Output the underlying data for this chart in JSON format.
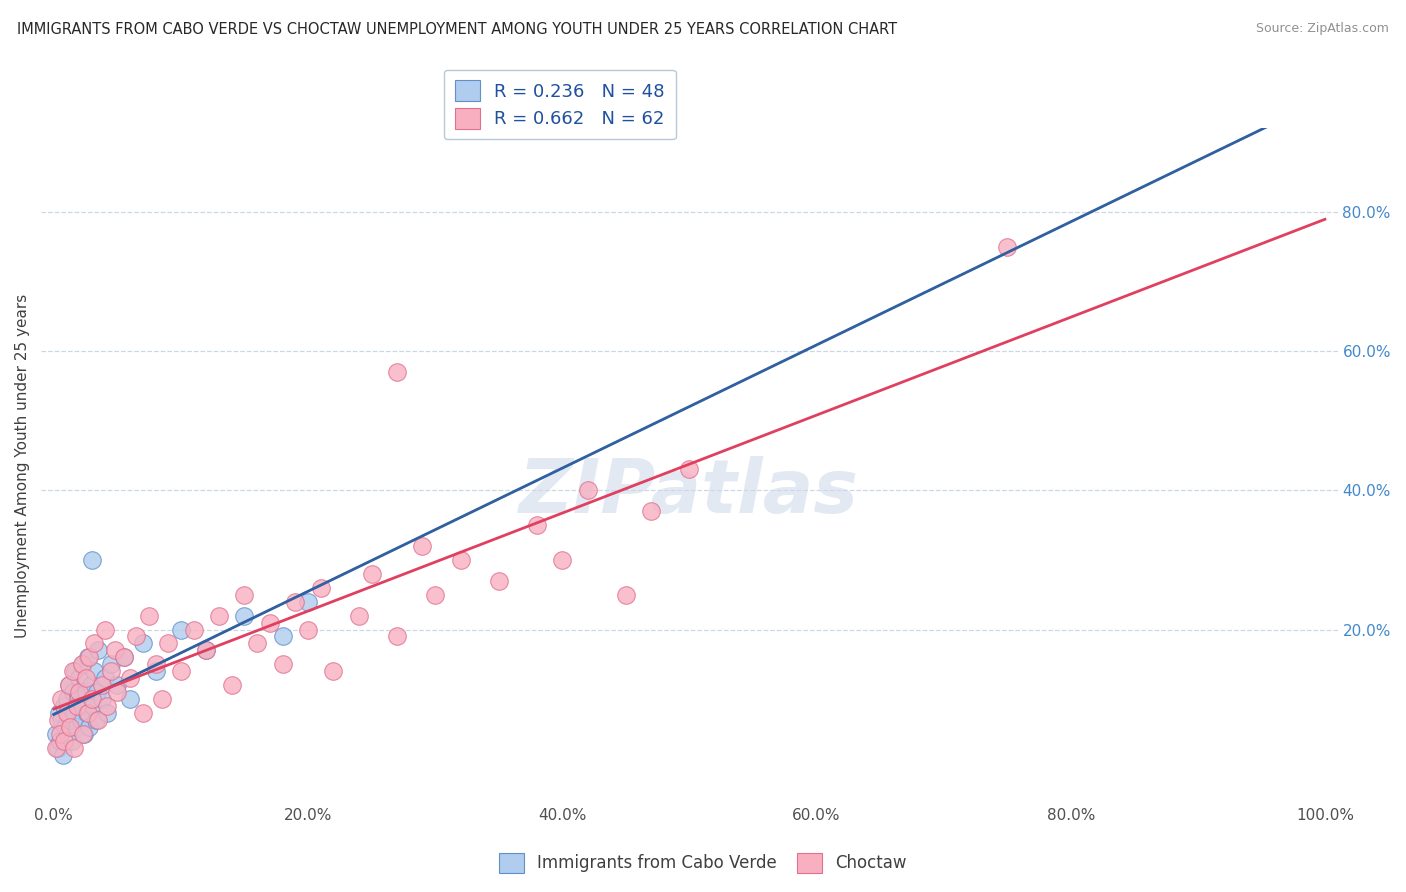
{
  "title": "IMMIGRANTS FROM CABO VERDE VS CHOCTAW UNEMPLOYMENT AMONG YOUTH UNDER 25 YEARS CORRELATION CHART",
  "source": "Source: ZipAtlas.com",
  "ylabel": "Unemployment Among Youth under 25 years",
  "xlim": [
    -1,
    101
  ],
  "ylim": [
    -5,
    92
  ],
  "x_tick_labels": [
    "0.0%",
    "20.0%",
    "40.0%",
    "60.0%",
    "80.0%",
    "100.0%"
  ],
  "x_tick_vals": [
    0,
    20,
    40,
    60,
    80,
    100
  ],
  "y_tick_labels": [
    "20.0%",
    "40.0%",
    "60.0%",
    "80.0%"
  ],
  "y_tick_vals": [
    20,
    40,
    60,
    80
  ],
  "legend_r1": "R = 0.236",
  "legend_n1": "N = 48",
  "legend_r2": "R = 0.662",
  "legend_n2": "N = 62",
  "watermark": "ZIPatlas",
  "cabo_x": [
    0.2,
    0.3,
    0.4,
    0.5,
    0.6,
    0.7,
    0.8,
    0.9,
    1.0,
    1.1,
    1.2,
    1.3,
    1.4,
    1.5,
    1.6,
    1.7,
    1.8,
    1.9,
    2.0,
    2.1,
    2.2,
    2.3,
    2.4,
    2.5,
    2.6,
    2.7,
    2.8,
    2.9,
    3.0,
    3.1,
    3.2,
    3.3,
    3.4,
    3.5,
    3.8,
    4.0,
    4.2,
    4.5,
    5.0,
    5.5,
    6.0,
    7.0,
    8.0,
    10.0,
    12.0,
    15.0,
    18.0,
    20.0
  ],
  "cabo_y": [
    5,
    3,
    8,
    4,
    7,
    2,
    9,
    6,
    10,
    5,
    12,
    7,
    4,
    11,
    8,
    14,
    6,
    10,
    13,
    7,
    9,
    15,
    5,
    11,
    8,
    16,
    6,
    12,
    30,
    9,
    14,
    7,
    11,
    17,
    10,
    13,
    8,
    15,
    12,
    16,
    10,
    18,
    14,
    20,
    17,
    22,
    19,
    24
  ],
  "choctaw_x": [
    0.2,
    0.3,
    0.5,
    0.6,
    0.8,
    1.0,
    1.2,
    1.3,
    1.5,
    1.6,
    1.8,
    2.0,
    2.2,
    2.3,
    2.5,
    2.7,
    2.8,
    3.0,
    3.2,
    3.5,
    3.8,
    4.0,
    4.2,
    4.5,
    4.8,
    5.0,
    5.5,
    6.0,
    6.5,
    7.0,
    7.5,
    8.0,
    8.5,
    9.0,
    10.0,
    11.0,
    12.0,
    13.0,
    14.0,
    15.0,
    16.0,
    17.0,
    18.0,
    19.0,
    20.0,
    21.0,
    22.0,
    24.0,
    25.0,
    27.0,
    29.0,
    30.0,
    32.0,
    35.0,
    38.0,
    40.0,
    42.0,
    45.0,
    47.0,
    50.0,
    75.0,
    27.0
  ],
  "choctaw_y": [
    3,
    7,
    5,
    10,
    4,
    8,
    12,
    6,
    14,
    3,
    9,
    11,
    15,
    5,
    13,
    8,
    16,
    10,
    18,
    7,
    12,
    20,
    9,
    14,
    17,
    11,
    16,
    13,
    19,
    8,
    22,
    15,
    10,
    18,
    14,
    20,
    17,
    22,
    12,
    25,
    18,
    21,
    15,
    24,
    20,
    26,
    14,
    22,
    28,
    19,
    32,
    25,
    30,
    27,
    35,
    30,
    40,
    25,
    37,
    43,
    75,
    57
  ]
}
